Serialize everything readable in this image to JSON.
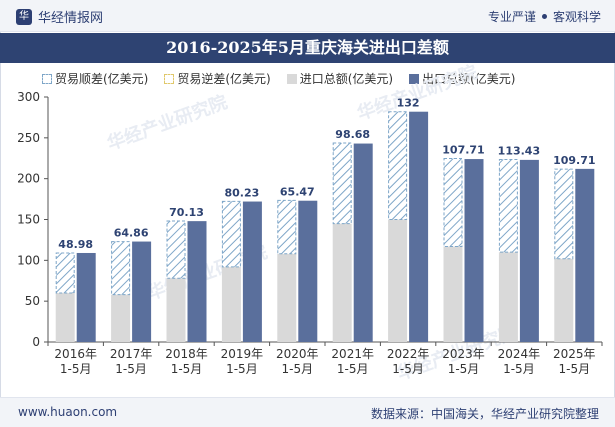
{
  "header": {
    "brand": "华经情报网",
    "tagline_left": "专业严谨",
    "tagline_right": "客观科学"
  },
  "footer": {
    "site": "www.huaon.com",
    "source": "数据来源：中国海关，华经产业研究院整理"
  },
  "colors": {
    "export": "#5a6f9c",
    "import": "#d9d9d9",
    "surplus_hatch": "#7ea6c8",
    "title_bg": "#2e4372"
  },
  "chart_data": {
    "type": "bar",
    "title": "2016-2025年5月重庆海关进出口差额",
    "categories": [
      "2016年\n1-5月",
      "2017年\n1-5月",
      "2018年\n1-5月",
      "2019年\n1-5月",
      "2020年\n1-5月",
      "2021年\n1-5月",
      "2022年\n1-5月",
      "2023年\n1-5月",
      "2024年\n1-5月",
      "2025年\n1-5月"
    ],
    "legend": [
      "贸易顺差(亿美元)",
      "贸易逆差(亿美元)",
      "进口总额(亿美元)",
      "出口总额(亿美元)"
    ],
    "series": [
      {
        "name": "贸易顺差(亿美元)",
        "values": [
          48.98,
          64.86,
          70.13,
          80.23,
          65.47,
          98.68,
          132,
          107.71,
          113.43,
          109.71
        ]
      },
      {
        "name": "进口总额(亿美元)",
        "values": [
          60,
          58,
          78,
          92,
          108,
          145,
          150,
          117,
          110,
          102
        ]
      },
      {
        "name": "出口总额(亿美元)",
        "values": [
          109,
          123,
          148,
          172,
          173,
          243,
          282,
          224,
          223,
          212
        ]
      }
    ],
    "ylim": [
      0,
      300
    ],
    "yticks": [
      0,
      50,
      100,
      150,
      200,
      250,
      300
    ],
    "watermark": "华经产业研究院"
  }
}
